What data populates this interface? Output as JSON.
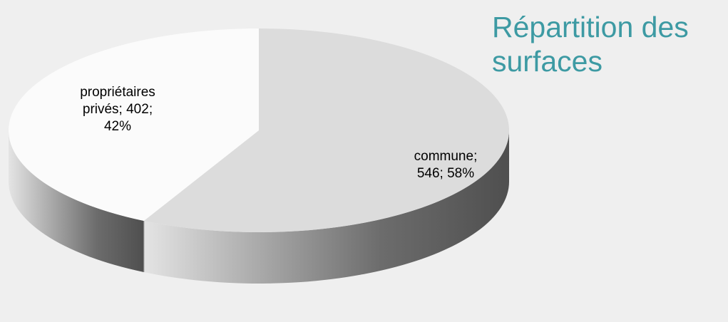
{
  "chart_data": {
    "type": "pie",
    "variant": "3d",
    "title_lines": [
      "Répartition des",
      "surfaces"
    ],
    "slices": [
      {
        "name": "commune",
        "value": 546,
        "percent": 58,
        "label_lines": [
          "commune;",
          "546; 58%"
        ],
        "color": "#dcdcdc",
        "side_color": "#6a6a6a"
      },
      {
        "name": "propriétaires privés",
        "value": 402,
        "percent": 42,
        "label_lines": [
          "propriétaires",
          "privés; 402;",
          "42%"
        ],
        "color": "#fbfbfb",
        "side_color": "#c8c8c8"
      }
    ],
    "start_angle_deg": 0,
    "direction": "clockwise",
    "legend": "none"
  },
  "colors": {
    "background": "#efefef",
    "title": "#3d9aa3",
    "label": "#000000"
  }
}
